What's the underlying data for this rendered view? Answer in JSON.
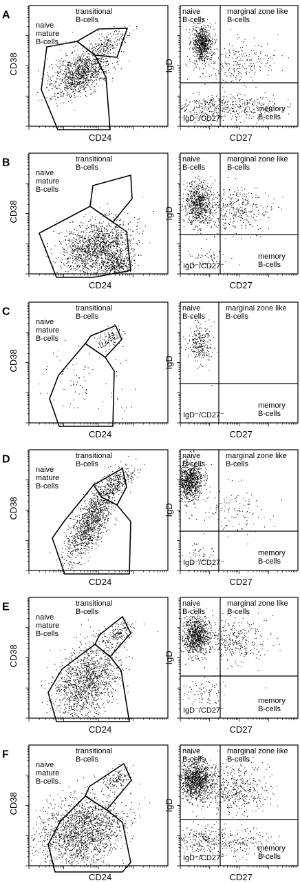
{
  "panels": [
    {
      "letter": "A"
    },
    {
      "letter": "B"
    },
    {
      "letter": "C"
    },
    {
      "letter": "D"
    },
    {
      "letter": "E"
    },
    {
      "letter": "F"
    }
  ],
  "left_plot": {
    "x_label": "CD24",
    "y_label": "CD38",
    "populations": {
      "transitional": [
        "transitional",
        "B-cells"
      ],
      "naive_mature": [
        "naive",
        "mature",
        "B-cells"
      ]
    }
  },
  "right_plot": {
    "x_label": "CD27",
    "y_label": "IgD",
    "quadrants": {
      "naive": [
        "naive",
        "B-cells"
      ],
      "marginal_zone": [
        "marginal zone like",
        "B-cells"
      ],
      "double_negative": "IgD⁻/CD27⁻",
      "memory": [
        "memory",
        "B-cells"
      ]
    }
  }
}
